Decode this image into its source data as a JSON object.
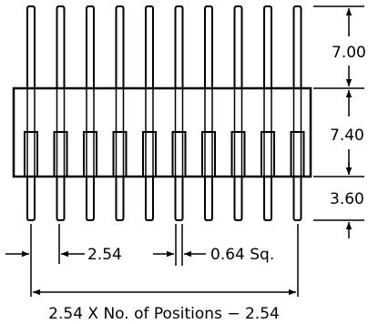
{
  "dimensions": {
    "upper_pin_length": "7.00",
    "body_height": "7.40",
    "lower_pin_length": "3.60",
    "pitch": "2.54",
    "pin_size": "0.64 Sq.",
    "overall_length": "2.54 X No. of Positions − 2.54"
  },
  "drawing": {
    "pin_count": 10
  }
}
